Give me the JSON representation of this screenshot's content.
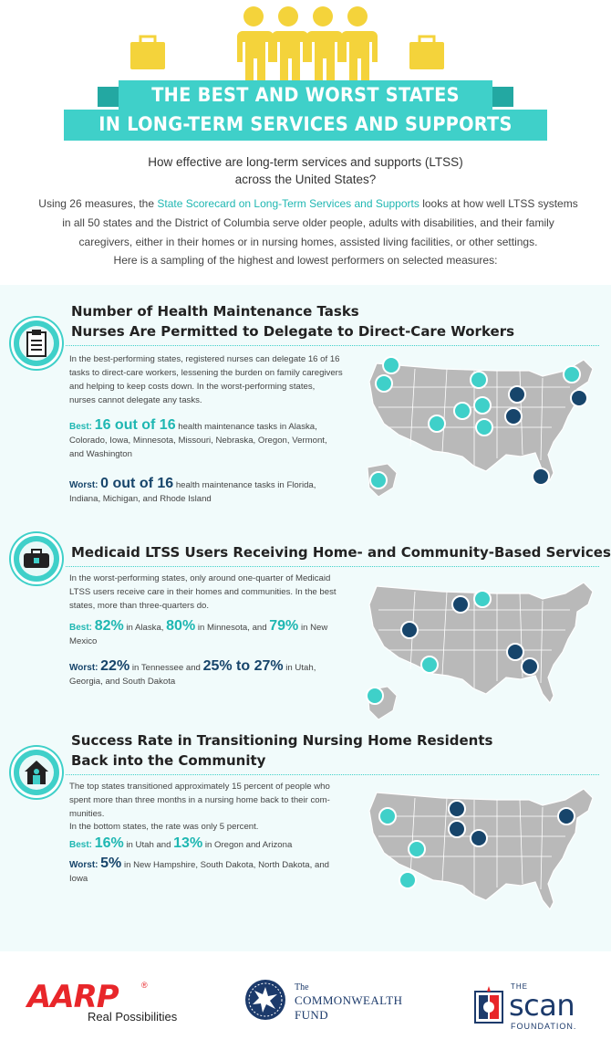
{
  "header": {
    "banner_line1": "THE BEST AND WORST STATES",
    "banner_line2": "IN LONG-TERM SERVICES AND SUPPORTS",
    "question_line1": "How effective are long-term services and supports (LTSS)",
    "question_line2": "across the United States?",
    "intro_before": "Using 26 measures, the ",
    "intro_highlight": "State Scorecard on Long-Term Services and Supports",
    "intro_after": " looks at how well LTSS systems in all 50 states and the District of Columbia serve older people, adults with disabilities, and their family caregivers, either in their homes or in nursing homes, assisted living facilities, or other settings.",
    "sampling": "Here is a sampling of the highest and lowest performers on selected measures:"
  },
  "sections": [
    {
      "icon": "clipboard-icon",
      "title_line1": "Number of Health Maintenance Tasks",
      "title_line2": "Nurses Are Permitted to Delegate to Direct-Care Workers",
      "description": "In the best-performing states, registered nurses can delegate 16 of 16 tasks to direct-care workers, lessening the burden on family caregivers and helping to keep costs down. In the worst-performing states, nurses cannot delegate any tasks.",
      "best_label": "Best:",
      "best_big": "16 out of 16",
      "best_text": "health maintenance tasks in Alaska, Colorado, Iowa, Minnesota, Missouri, Nebraska, Oregon, Vermont, and Washington",
      "worst_label": "Worst:",
      "worst_big": "0 out of 16",
      "worst_text": "health maintenance tasks in Florida, Indiana, Michigan, and Rhode Island"
    },
    {
      "icon": "medical-bag-icon",
      "title_line1": "Medicaid LTSS Users Receiving Home- and Community-Based Services",
      "description": "In the worst-performing states, only around one-quarter of Medicaid LTSS users receive care in their homes and communities. In the best states, more than three-quarters do.",
      "best_label": "Best:",
      "best_big1": "82%",
      "best_text1": "in Alaska,",
      "best_big2": "80%",
      "best_text2": "in Minnesota, and",
      "best_big3": "79%",
      "best_text3": "in New Mexico",
      "worst_label": "Worst:",
      "worst_big1": "22%",
      "worst_text1": "in Tennessee and",
      "worst_big2": "25% to 27%",
      "worst_text2": "in Utah, Georgia, and South Dakota"
    },
    {
      "icon": "home-person-icon",
      "title_line1": "Success Rate in Transitioning Nursing Home Residents",
      "title_line2": "Back into the Community",
      "description_line1": "The top states transitioned approximately 15 percent of people who spent more than three months in a nursing home back to their com-munities.",
      "description_line2": "In the bottom states, the rate was only 5 percent.",
      "best_label": "Best:",
      "best_big1": "16%",
      "best_text1": "in Utah and",
      "best_big2": "13%",
      "best_text2": "in Oregon and Arizona",
      "worst_label": "Worst:",
      "worst_big": "5%",
      "worst_text": "in New Hampshire, South Dakota, North Dakota, and Iowa"
    }
  ],
  "footer": {
    "aarp_logo": "AARP",
    "aarp_reg": "®",
    "aarp_tagline": "Real Possibilities",
    "cwf_the": "The",
    "cwf_name": "COMMONWEALTH",
    "cwf_fund": "FUND",
    "scan_the": "THE",
    "scan_name": "scan",
    "scan_foundation": "FOUNDATION."
  },
  "colors": {
    "teal": "#3fd0c9",
    "navy": "#17456b",
    "yellow": "#f4d33b",
    "map_gray": "#b9b9b9"
  }
}
